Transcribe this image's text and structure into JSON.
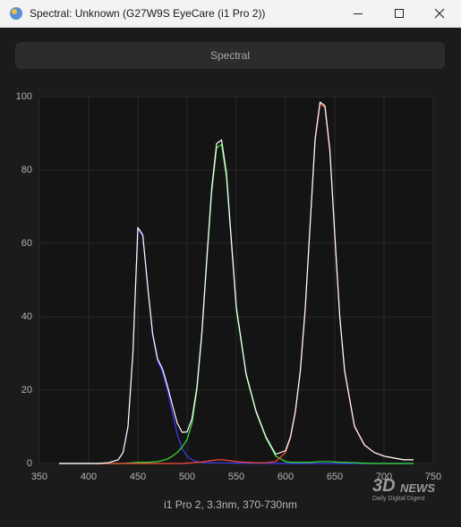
{
  "window": {
    "title": "Spectral: Unknown (G27W9S EyeCare (i1 Pro 2))"
  },
  "tab": "Spectral",
  "chart_data": {
    "type": "line",
    "x": [
      370,
      380,
      390,
      400,
      410,
      420,
      430,
      435,
      440,
      445,
      450,
      455,
      460,
      465,
      470,
      475,
      480,
      485,
      490,
      495,
      500,
      505,
      510,
      515,
      520,
      525,
      530,
      535,
      540,
      545,
      550,
      560,
      570,
      580,
      590,
      600,
      605,
      610,
      615,
      620,
      625,
      630,
      635,
      640,
      645,
      650,
      655,
      660,
      670,
      680,
      690,
      700,
      710,
      720,
      730
    ],
    "series": [
      {
        "color": "#3b3bff",
        "values": [
          0,
          0,
          0,
          0,
          0,
          0.2,
          1,
          3,
          10,
          30,
          64,
          62,
          48,
          35,
          28,
          25,
          20,
          14,
          8,
          4,
          2,
          1,
          0.5,
          0.3,
          0.2,
          0.2,
          0.2,
          0.2,
          0.2,
          0.1,
          0.1,
          0.1,
          0.1,
          0.1,
          0,
          0,
          0,
          0,
          0,
          0,
          0,
          0,
          0,
          0,
          0,
          0,
          0,
          0,
          0,
          0,
          0,
          0,
          0,
          0,
          0
        ]
      },
      {
        "color": "#35e635",
        "values": [
          0,
          0,
          0,
          0,
          0,
          0,
          0,
          0,
          0.1,
          0.2,
          0.3,
          0.3,
          0.3,
          0.4,
          0.5,
          0.8,
          1.2,
          2,
          3,
          4.5,
          6.5,
          11,
          20,
          35,
          55,
          74,
          86,
          87,
          78,
          60,
          42,
          24,
          14,
          7,
          2,
          0.5,
          0.3,
          0.3,
          0.3,
          0.3,
          0.3,
          0.4,
          0.5,
          0.5,
          0.5,
          0.4,
          0.3,
          0.3,
          0.2,
          0.1,
          0,
          0,
          0,
          0,
          0
        ]
      },
      {
        "color": "#ff4b3a",
        "values": [
          0,
          0,
          0,
          0,
          0,
          0,
          0,
          0,
          0,
          0,
          0,
          0,
          0,
          0,
          0,
          0,
          0,
          0,
          0,
          0,
          0.1,
          0.2,
          0.3,
          0.4,
          0.6,
          0.8,
          1,
          1,
          0.9,
          0.7,
          0.5,
          0.3,
          0.2,
          0.2,
          0.5,
          3,
          7,
          14,
          25,
          42,
          65,
          88,
          98,
          97,
          85,
          62,
          40,
          25,
          10,
          5,
          3,
          2,
          1.5,
          1,
          1
        ]
      },
      {
        "color": "#ffffff",
        "values": [
          0,
          0,
          0,
          0,
          0,
          0.2,
          1,
          3,
          10.1,
          30.2,
          64.3,
          62.3,
          48.3,
          35.4,
          28.5,
          25.8,
          21.2,
          16,
          11,
          8.5,
          8.6,
          12.2,
          20.8,
          35.7,
          55.8,
          75,
          87.2,
          88.2,
          79.1,
          60.8,
          42.6,
          24.4,
          14.3,
          7.3,
          2.5,
          3.5,
          7.3,
          14.3,
          25.3,
          42.3,
          65.3,
          88.4,
          98.5,
          97.5,
          85.5,
          62.4,
          40.3,
          25.3,
          10.2,
          5.1,
          3,
          2,
          1.5,
          1,
          1
        ]
      }
    ],
    "xlim": [
      350,
      750
    ],
    "ylim": [
      0,
      100
    ],
    "xticks": [
      350,
      400,
      450,
      500,
      550,
      600,
      650,
      700,
      750
    ],
    "yticks": [
      0,
      20,
      40,
      60,
      80,
      100
    ],
    "grid": true
  },
  "footer": "i1 Pro 2, 3.3nm, 370-730nm",
  "watermark": {
    "logo": "3D",
    "name": "NEWS",
    "tagline": "Daily Digital Digest"
  }
}
